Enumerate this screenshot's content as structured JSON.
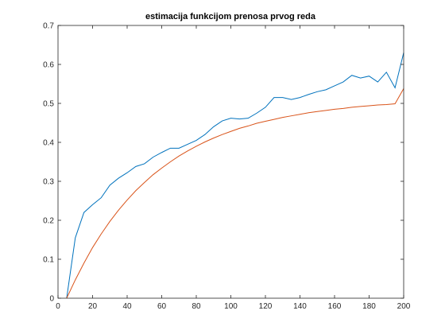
{
  "chart_data": {
    "type": "line",
    "title": "estimacija funkcijom prenosa prvog reda",
    "xlabel": "",
    "ylabel": "",
    "xlim": [
      0,
      200
    ],
    "ylim": [
      0,
      0.7
    ],
    "x_ticks": [
      "0",
      "20",
      "40",
      "60",
      "80",
      "100",
      "120",
      "140",
      "160",
      "180",
      "200"
    ],
    "y_ticks": [
      "0",
      "0.1",
      "0.2",
      "0.3",
      "0.4",
      "0.5",
      "0.6",
      "0.7"
    ],
    "grid": false,
    "legend": "none",
    "series": [
      {
        "color": "#0072BD",
        "x": [
          5,
          10,
          15,
          20,
          25,
          30,
          35,
          40,
          45,
          50,
          55,
          60,
          65,
          70,
          75,
          80,
          85,
          90,
          95,
          100,
          105,
          110,
          115,
          120,
          125,
          130,
          135,
          140,
          145,
          150,
          155,
          160,
          165,
          170,
          175,
          180,
          185,
          190,
          195,
          200
        ],
        "y": [
          0.0,
          0.155,
          0.22,
          0.24,
          0.258,
          0.29,
          0.308,
          0.322,
          0.338,
          0.345,
          0.362,
          0.374,
          0.385,
          0.385,
          0.395,
          0.405,
          0.42,
          0.44,
          0.455,
          0.462,
          0.46,
          0.462,
          0.475,
          0.49,
          0.515,
          0.515,
          0.51,
          0.515,
          0.523,
          0.53,
          0.535,
          0.545,
          0.555,
          0.572,
          0.565,
          0.57,
          0.555,
          0.58,
          0.54,
          0.63
        ]
      },
      {
        "color": "#D95319",
        "x": [
          5,
          10,
          15,
          20,
          25,
          30,
          35,
          40,
          45,
          50,
          55,
          60,
          65,
          70,
          75,
          80,
          85,
          90,
          95,
          100,
          105,
          110,
          115,
          120,
          125,
          130,
          135,
          140,
          145,
          150,
          155,
          160,
          165,
          170,
          175,
          180,
          185,
          190,
          195,
          200
        ],
        "y": [
          0.0,
          0.047,
          0.09,
          0.13,
          0.165,
          0.197,
          0.226,
          0.252,
          0.276,
          0.297,
          0.317,
          0.334,
          0.35,
          0.365,
          0.378,
          0.39,
          0.401,
          0.411,
          0.42,
          0.428,
          0.436,
          0.442,
          0.449,
          0.454,
          0.459,
          0.464,
          0.468,
          0.472,
          0.476,
          0.479,
          0.482,
          0.485,
          0.487,
          0.49,
          0.492,
          0.494,
          0.496,
          0.497,
          0.499,
          0.538
        ]
      }
    ]
  }
}
